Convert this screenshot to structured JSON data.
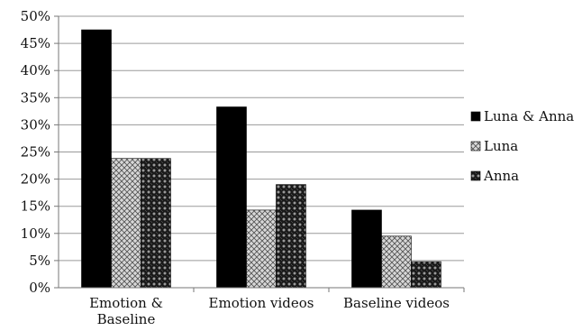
{
  "chart_data": {
    "type": "bar",
    "categories": [
      [
        "Emotion &",
        "Baseline"
      ],
      [
        "Emotion videos"
      ],
      [
        "Baseline videos"
      ]
    ],
    "series": [
      {
        "name": "Luna & Anna",
        "values": [
          47.5,
          33.3,
          14.3
        ],
        "pattern": "solid-black"
      },
      {
        "name": "Luna",
        "values": [
          23.8,
          14.3,
          9.5
        ],
        "pattern": "light-crosshatch"
      },
      {
        "name": "Anna",
        "values": [
          23.8,
          19.0,
          4.8
        ],
        "pattern": "dark-dotted"
      }
    ],
    "yticks": [
      "0%",
      "5%",
      "10%",
      "15%",
      "20%",
      "25%",
      "30%",
      "35%",
      "40%",
      "45%",
      "50%"
    ],
    "ylim": [
      0,
      50
    ],
    "y_unit": "%",
    "grid": true,
    "legend_position": "right"
  }
}
